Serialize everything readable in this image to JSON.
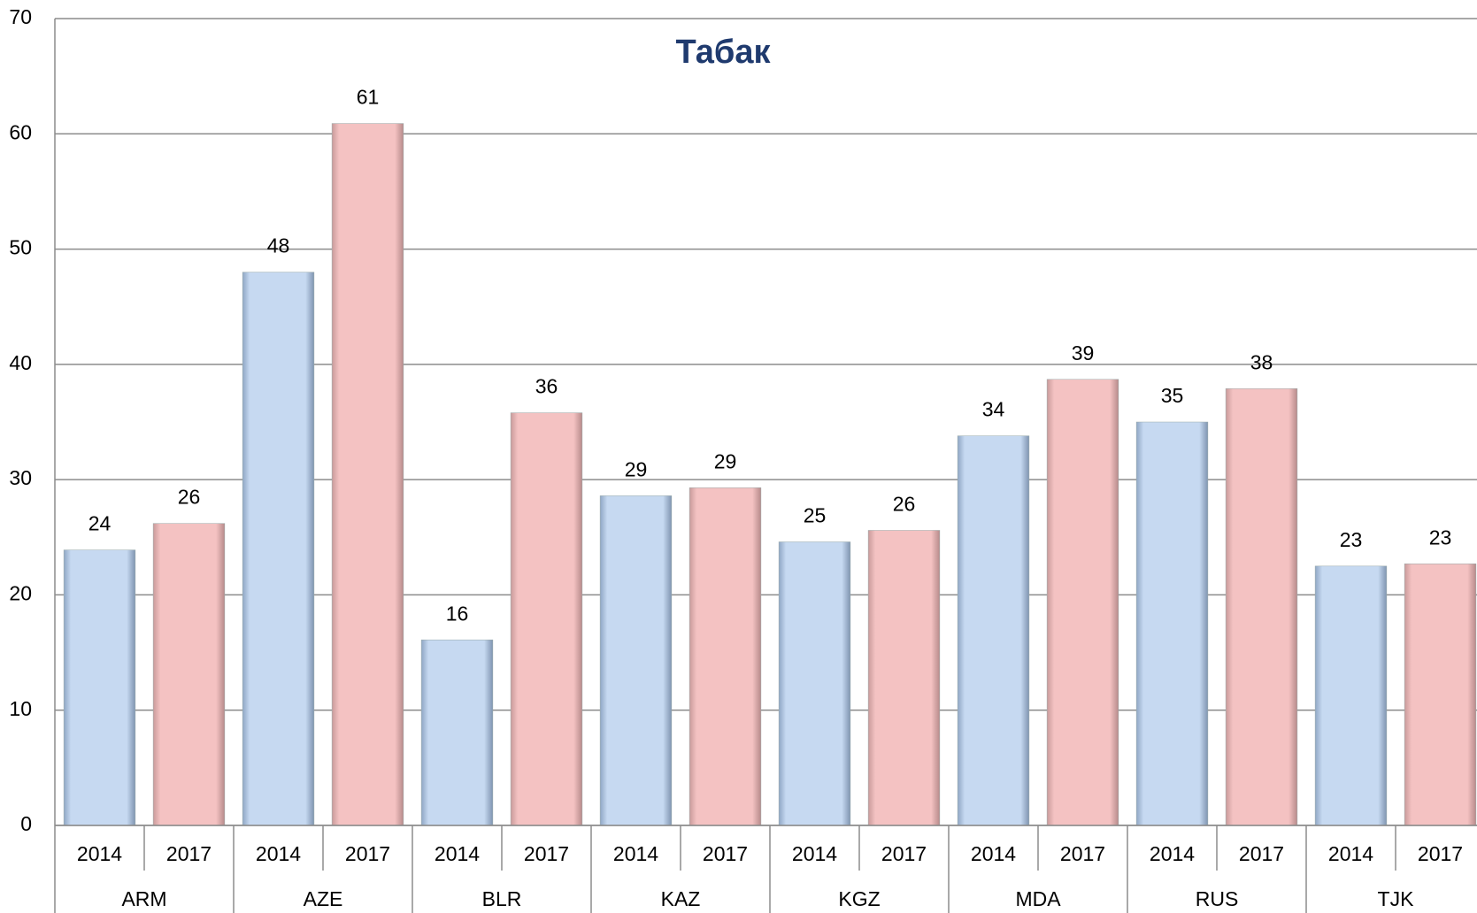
{
  "chart_data": {
    "type": "bar",
    "title": "Табак",
    "categories": [
      "ARM",
      "AZE",
      "BLR",
      "KAZ",
      "KGZ",
      "MDA",
      "RUS",
      "TJK"
    ],
    "series": [
      {
        "name": "2014",
        "color": "#c6d9f1",
        "values": [
          23.9,
          48.0,
          16.1,
          28.6,
          24.6,
          33.8,
          35.0,
          22.5
        ],
        "value_labels": [
          "24",
          "48",
          "16",
          "29",
          "25",
          "34",
          "35",
          "23"
        ]
      },
      {
        "name": "2017",
        "color": "#f4c2c2",
        "values": [
          26.2,
          60.9,
          35.8,
          29.3,
          25.6,
          38.7,
          37.9,
          22.7
        ],
        "value_labels": [
          "26",
          "61",
          "36",
          "29",
          "26",
          "39",
          "38",
          "23"
        ]
      }
    ],
    "ylim": [
      0,
      70
    ],
    "yticks": [
      0,
      10,
      20,
      30,
      40,
      50,
      60,
      70
    ],
    "grid": true
  }
}
